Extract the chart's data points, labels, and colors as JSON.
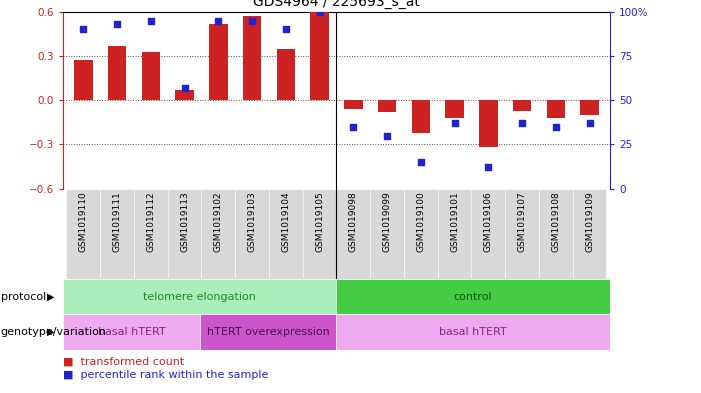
{
  "title": "GDS4964 / 225693_s_at",
  "samples": [
    "GSM1019110",
    "GSM1019111",
    "GSM1019112",
    "GSM1019113",
    "GSM1019102",
    "GSM1019103",
    "GSM1019104",
    "GSM1019105",
    "GSM1019098",
    "GSM1019099",
    "GSM1019100",
    "GSM1019101",
    "GSM1019106",
    "GSM1019107",
    "GSM1019108",
    "GSM1019109"
  ],
  "bar_values": [
    0.27,
    0.37,
    0.33,
    0.07,
    0.52,
    0.57,
    0.35,
    0.6,
    -0.06,
    -0.08,
    -0.22,
    -0.12,
    -0.32,
    -0.07,
    -0.12,
    -0.1
  ],
  "percentile_values": [
    90,
    93,
    95,
    57,
    95,
    95,
    90,
    100,
    35,
    30,
    15,
    37,
    12,
    37,
    35,
    37
  ],
  "ylim": [
    -0.6,
    0.6
  ],
  "yticks": [
    -0.6,
    -0.3,
    0.0,
    0.3,
    0.6
  ],
  "y2ticks": [
    0,
    25,
    50,
    75,
    100
  ],
  "y2labels": [
    "0",
    "25",
    "50",
    "75",
    "100%"
  ],
  "hlines_dotted": [
    -0.3,
    0.3
  ],
  "hline_red": 0.0,
  "bar_color": "#cc2222",
  "dot_color": "#2222cc",
  "zero_line_color": "#cc2222",
  "dotted_line_color": "#555555",
  "bg_color": "#ffffff",
  "protocol_groups": [
    {
      "label": "telomere elongation",
      "start": 0,
      "end": 8,
      "color": "#aaeebb",
      "text_color": "#228822"
    },
    {
      "label": "control",
      "start": 8,
      "end": 16,
      "color": "#44cc44",
      "text_color": "#115511"
    }
  ],
  "genotype_groups": [
    {
      "label": "basal hTERT",
      "start": 0,
      "end": 4,
      "color": "#eeaaee",
      "text_color": "#882288"
    },
    {
      "label": "hTERT overexpression",
      "start": 4,
      "end": 8,
      "color": "#cc55cc",
      "text_color": "#441144"
    },
    {
      "label": "basal hTERT",
      "start": 8,
      "end": 16,
      "color": "#eeaaee",
      "text_color": "#882288"
    }
  ],
  "legend_bar_label": "transformed count",
  "legend_dot_label": "percentile rank within the sample",
  "label_fontsize": 7,
  "tick_fontsize": 7.5,
  "sample_fontsize": 6.5,
  "group_fontsize": 8
}
